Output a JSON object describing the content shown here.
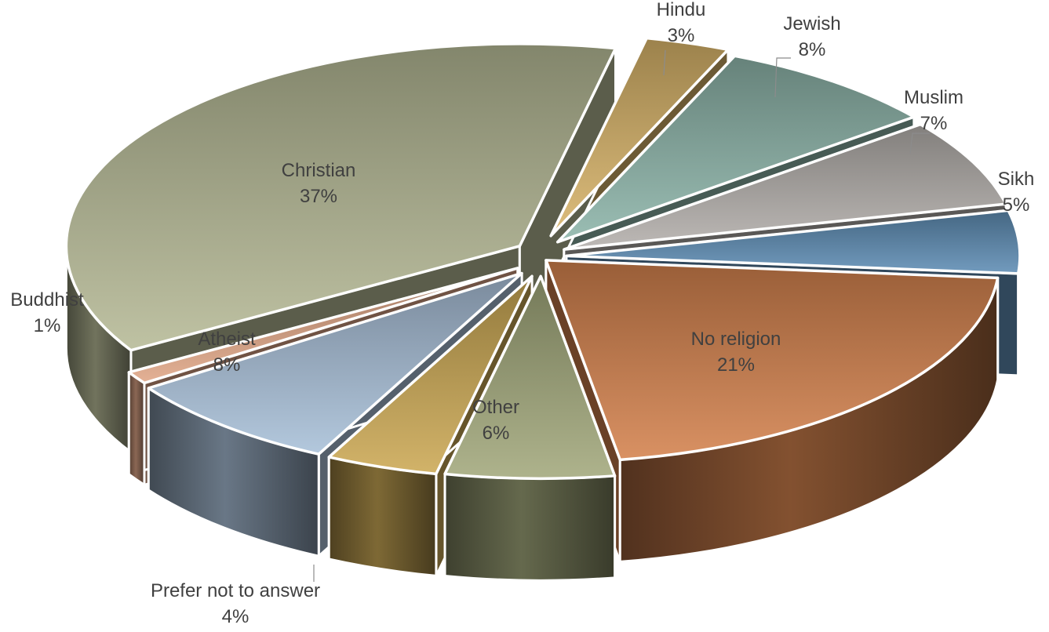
{
  "chart_data": {
    "type": "pie",
    "style": "3d-exploded",
    "title": "",
    "categories": [
      "No religion",
      "Other",
      "Prefer not to answer",
      "Atheist",
      "Buddhist",
      "Christian",
      "Hindu",
      "Jewish",
      "Muslim",
      "Sikh"
    ],
    "values": [
      21,
      6,
      4,
      8,
      1,
      37,
      3,
      8,
      7,
      5
    ],
    "value_labels": [
      "21%",
      "6%",
      "4%",
      "8%",
      "1%",
      "37%",
      "3%",
      "8%",
      "7%",
      "5%"
    ],
    "colors": [
      "#D4824E",
      "#A3A97C",
      "#CCA955",
      "#A9C0D8",
      "#E0A687",
      "#B6BA96",
      "#D8B46A",
      "#8DB5AA",
      "#B4B0AC",
      "#5F8DB5"
    ],
    "legend": "none"
  }
}
